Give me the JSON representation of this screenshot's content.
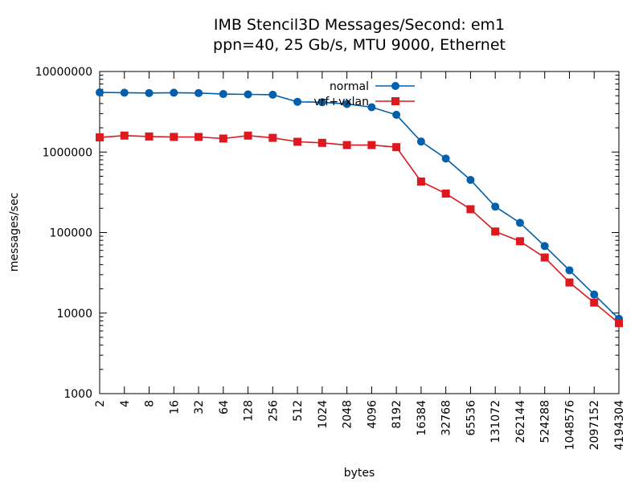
{
  "chart_data": {
    "type": "line",
    "title": "IMB Stencil3D Messages/Second: em1",
    "subtitle": "ppn=40, 25 Gb/s, MTU 9000, Ethernet",
    "xlabel": "bytes",
    "ylabel": "messages/sec",
    "x_scale": "log",
    "y_scale": "log",
    "xlim": [
      2,
      4194304
    ],
    "ylim": [
      1000,
      10000000
    ],
    "grid": false,
    "legend_position": "top-right",
    "x_tick_labels": [
      "2",
      "4",
      "8",
      "16",
      "32",
      "64",
      "128",
      "256",
      "512",
      "1024",
      "2048",
      "4096",
      "8192",
      "16384",
      "32768",
      "65536",
      "131072",
      "262144",
      "524288",
      "1048576",
      "2097152",
      "4194304"
    ],
    "y_tick_labels": [
      "1000",
      "10000",
      "100000",
      "1000000",
      "10000000"
    ],
    "x": [
      2,
      4,
      8,
      16,
      32,
      64,
      128,
      256,
      512,
      1024,
      2048,
      4096,
      8192,
      16384,
      32768,
      65536,
      131072,
      262144,
      524288,
      1048576,
      2097152,
      4194304
    ],
    "series": [
      {
        "name": "normal",
        "color": "#0060ad",
        "marker": "circle",
        "values": [
          5500000,
          5450000,
          5400000,
          5450000,
          5400000,
          5250000,
          5200000,
          5150000,
          4200000,
          4150000,
          3950000,
          3600000,
          2900000,
          1350000,
          830000,
          450000,
          210000,
          132000,
          68000,
          34000,
          17000,
          8500
        ]
      },
      {
        "name": "vrf+vxlan",
        "color": "#dd181f",
        "marker": "square",
        "values": [
          1520000,
          1600000,
          1560000,
          1540000,
          1540000,
          1470000,
          1600000,
          1500000,
          1340000,
          1300000,
          1220000,
          1220000,
          1150000,
          430000,
          305000,
          195000,
          103000,
          78000,
          49000,
          24000,
          13500,
          7500
        ]
      }
    ]
  }
}
